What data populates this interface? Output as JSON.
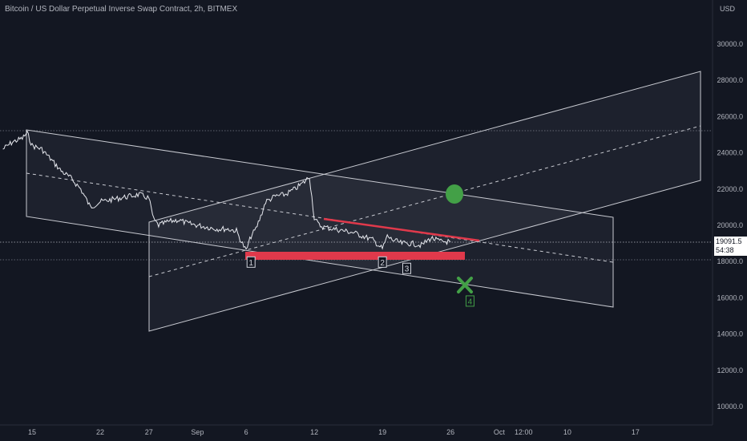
{
  "header": {
    "title": "Bitcoin / US Dollar Perpetual Inverse Swap Contract, 2h, BITMEX",
    "currency": "USD"
  },
  "price_tag": {
    "price": "19091.5",
    "countdown": "54:38"
  },
  "colors": {
    "background": "#131722",
    "channel": "#d1d4dc",
    "support": "#e0394b",
    "target_up": "#43a047",
    "target_down": "#43a047"
  },
  "chart_data": {
    "type": "line",
    "title": "Bitcoin / US Dollar Perpetual Inverse Swap Contract, 2h, BITMEX",
    "ylabel": "USD",
    "ylim": [
      9000,
      32000
    ],
    "y_ticks": [
      10000,
      12000,
      14000,
      16000,
      18000,
      20000,
      22000,
      24000,
      26000,
      28000,
      30000
    ],
    "y_tick_labels": [
      "10000.0",
      "12000.0",
      "14000.0",
      "16000.0",
      "18000.0",
      "20000.0",
      "22000.0",
      "24000.0",
      "26000.0",
      "28000.0",
      "30000.0"
    ],
    "x_ticks": [
      15,
      22,
      27,
      32,
      37,
      44,
      51,
      58,
      63,
      65.5,
      70,
      77
    ],
    "x_tick_labels": [
      "15",
      "22",
      "27",
      "Sep",
      "6",
      "12",
      "19",
      "26",
      "Oct",
      "12:00",
      "10",
      "17"
    ],
    "xlim": [
      12,
      87
    ],
    "series": [
      {
        "x": [
          12,
          13,
          14,
          14.5,
          15,
          16,
          17,
          18,
          19,
          20,
          21,
          22,
          23,
          24,
          25,
          26,
          27,
          27.5,
          28,
          29,
          30,
          31,
          32,
          33,
          34,
          35,
          36,
          36.5,
          37,
          37.5,
          38,
          38.5,
          39,
          40,
          41,
          42,
          43,
          43.5,
          44,
          44.5,
          45,
          46,
          47,
          48,
          49,
          50,
          51,
          51.5,
          52,
          53,
          54,
          55,
          56,
          57,
          58
        ],
        "y": [
          24200,
          24600,
          24800,
          25100,
          24400,
          24200,
          23600,
          23000,
          22600,
          22000,
          21000,
          21300,
          21400,
          21500,
          21600,
          21700,
          21500,
          20300,
          20000,
          20200,
          20300,
          20100,
          20000,
          19900,
          19800,
          19800,
          19700,
          19100,
          18600,
          19400,
          19800,
          20500,
          21300,
          21600,
          21700,
          22000,
          22400,
          22700,
          20400,
          20000,
          19900,
          19800,
          19700,
          19600,
          19400,
          19200,
          18700,
          19400,
          19200,
          19000,
          19000,
          18900,
          19300,
          19100,
          19091.5
        ]
      }
    ],
    "annotations": [
      {
        "label": "1",
        "x": 37.5,
        "y": 17950
      },
      {
        "label": "2",
        "x": 51,
        "y": 17950
      },
      {
        "label": "3",
        "x": 53.5,
        "y": 17600
      },
      {
        "label": "4",
        "x": 60,
        "y": 15800
      }
    ],
    "grid": false,
    "legend": "none"
  }
}
